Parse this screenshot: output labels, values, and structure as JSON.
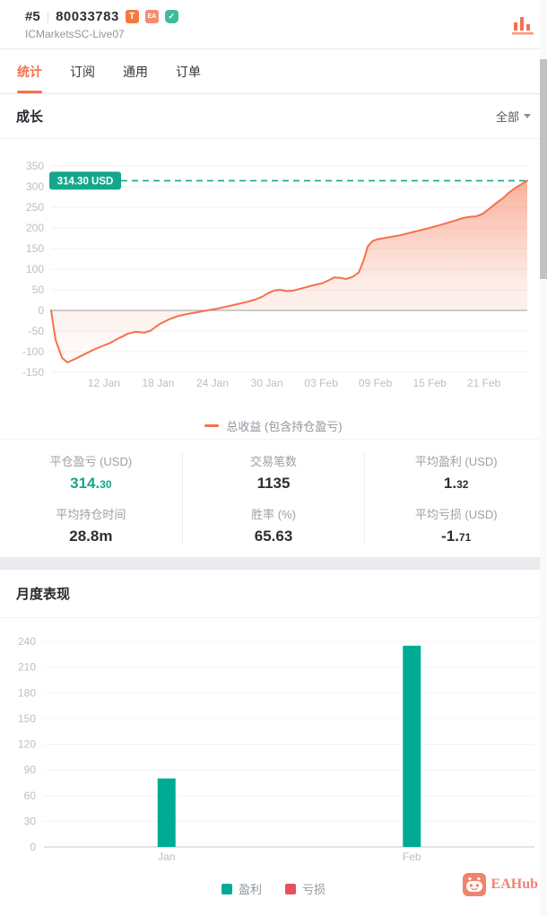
{
  "header": {
    "rank": "#5",
    "account_id": "80033783",
    "badges": [
      {
        "name": "trader-badge",
        "label": "T",
        "color": "#f5793b"
      },
      {
        "name": "ea-badge",
        "label": "EA",
        "color": "#f68d73"
      },
      {
        "name": "verified-badge",
        "label": "✓",
        "color": "#3fbc9b"
      }
    ],
    "server": "ICMarketsSC-Live07"
  },
  "tabs": [
    {
      "label": "统计",
      "active": true
    },
    {
      "label": "订阅",
      "active": false
    },
    {
      "label": "通用",
      "active": false
    },
    {
      "label": "订单",
      "active": false
    }
  ],
  "growth": {
    "title": "成长",
    "filter_value": "全部",
    "tooltip_label": "314.30 USD",
    "legend_label": "总收益 (包含持仓盈亏)"
  },
  "stats": {
    "items": [
      {
        "label": "平仓盈亏 (USD)",
        "value_main": "314.",
        "value_dec": "30",
        "color": "#14a78c"
      },
      {
        "label": "交易笔数",
        "value_main": "1135"
      },
      {
        "label": "平均盈利 (USD)",
        "value_main": "1.",
        "value_dec": "32"
      },
      {
        "label": "平均持仓时间",
        "value_main": "28.8m"
      },
      {
        "label": "胜率 (%)",
        "value_main": "65.63"
      },
      {
        "label": "平均亏损 (USD)",
        "value_main": "-1.",
        "value_dec": "71"
      }
    ]
  },
  "monthly": {
    "title": "月度表现",
    "legend": [
      {
        "label": "盈利",
        "color": "#00ab96"
      },
      {
        "label": "亏损",
        "color": "#e85062"
      }
    ]
  },
  "watermark": {
    "text": "EAHub"
  },
  "colors": {
    "accent_orange": "#f4714c",
    "teal_green": "#14a78c",
    "bar_green": "#00ab96",
    "loss_red": "#e85062",
    "axis_text": "#b9bfc6",
    "gridline": "#f0f1f4"
  },
  "chart_data": [
    {
      "type": "area",
      "title": "成长",
      "series": [
        {
          "name": "总收益 (包含持仓盈亏)",
          "color": "#f4724c",
          "points": [
            [
              0,
              0
            ],
            [
              0.9,
              -70
            ],
            [
              2.3,
              -115
            ],
            [
              3.4,
              -126
            ],
            [
              4.8,
              -119
            ],
            [
              6.7,
              -108
            ],
            [
              8.6,
              -97
            ],
            [
              10.4,
              -88
            ],
            [
              12.4,
              -79
            ],
            [
              14.3,
              -67
            ],
            [
              16.2,
              -56
            ],
            [
              17.7,
              -52
            ],
            [
              19.6,
              -54
            ],
            [
              20.9,
              -49
            ],
            [
              22.8,
              -33
            ],
            [
              24.7,
              -22
            ],
            [
              26.6,
              -14
            ],
            [
              28.5,
              -9
            ],
            [
              31.4,
              -3
            ],
            [
              33.3,
              1
            ],
            [
              35.2,
              5
            ],
            [
              37.1,
              10
            ],
            [
              39,
              15
            ],
            [
              40.9,
              20
            ],
            [
              42.8,
              26
            ],
            [
              44.3,
              33
            ],
            [
              45.6,
              42
            ],
            [
              46.8,
              48
            ],
            [
              48.1,
              50
            ],
            [
              49.4,
              47
            ],
            [
              50.9,
              48
            ],
            [
              52.8,
              54
            ],
            [
              55.1,
              61
            ],
            [
              57,
              66
            ],
            [
              58.3,
              73
            ],
            [
              59.5,
              80
            ],
            [
              60.8,
              79
            ],
            [
              61.9,
              76
            ],
            [
              63.3,
              81
            ],
            [
              64.6,
              92
            ],
            [
              65.6,
              120
            ],
            [
              66.5,
              155
            ],
            [
              67.5,
              168
            ],
            [
              68.4,
              172
            ],
            [
              70.3,
              176
            ],
            [
              73.2,
              182
            ],
            [
              76,
              190
            ],
            [
              78.9,
              198
            ],
            [
              81.7,
              207
            ],
            [
              84.6,
              217
            ],
            [
              86.5,
              224
            ],
            [
              88,
              227
            ],
            [
              89.3,
              228
            ],
            [
              90.6,
              234
            ],
            [
              92.2,
              248
            ],
            [
              93.7,
              262
            ],
            [
              95,
              273
            ],
            [
              96.3,
              287
            ],
            [
              97.5,
              297
            ],
            [
              98.8,
              306
            ],
            [
              100,
              314.3
            ]
          ]
        }
      ],
      "x_ticks": [
        "12 Jan",
        "18 Jan",
        "24 Jan",
        "30 Jan",
        "03 Feb",
        "09 Feb",
        "15 Feb",
        "21 Feb"
      ],
      "x_tick_pcts": [
        11.1,
        22.5,
        33.9,
        45.3,
        56.7,
        68.1,
        79.5,
        90.9
      ],
      "ylim": [
        -150,
        350
      ],
      "y_ticks": [
        350,
        300,
        250,
        200,
        150,
        100,
        50,
        0,
        -50,
        -100,
        -150
      ],
      "marker": {
        "value": 314.3,
        "label": "314.30 USD",
        "color": "#14a78c"
      },
      "legend_position": "bottom",
      "grid": true
    },
    {
      "type": "bar",
      "title": "月度表现",
      "categories": [
        "Jan",
        "Feb"
      ],
      "series": [
        {
          "name": "盈利",
          "color": "#00ab96",
          "values": [
            80,
            235
          ]
        },
        {
          "name": "亏损",
          "color": "#e85062",
          "values": [
            0,
            0
          ]
        }
      ],
      "ylim": [
        0,
        240
      ],
      "y_ticks": [
        0,
        30,
        60,
        90,
        120,
        150,
        180,
        210,
        240
      ],
      "legend_position": "bottom",
      "grid": true
    }
  ]
}
